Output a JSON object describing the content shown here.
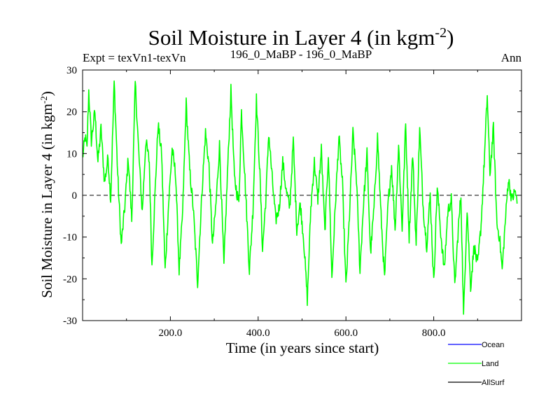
{
  "chart_data": {
    "type": "line",
    "title": "Soil Moisture in Layer 4 (in kgm",
    "title_exponent": "-2",
    "title_suffix": ")",
    "subtitle_left": "Expt = texVn1-texVn",
    "subtitle_center": "196_0_MaBP - 196_0_MaBP",
    "subtitle_right": "Ann",
    "xlabel": "Time (in years since start)",
    "ylabel": "Soil Moisture in Layer 4 (in kgm",
    "ylabel_exponent": "-2",
    "ylabel_suffix": ")",
    "xlim": [
      0,
      1000
    ],
    "ylim": [
      -30,
      30
    ],
    "xticks": [
      200,
      400,
      600,
      800
    ],
    "xtick_labels": [
      "200.0",
      "400.0",
      "600.0",
      "800.0"
    ],
    "yticks": [
      -30,
      -20,
      -10,
      0,
      10,
      20,
      30
    ],
    "ytick_labels": [
      "-30",
      "-20",
      "-10",
      "0",
      "10",
      "20",
      "30"
    ],
    "zero_line": true,
    "grid": false,
    "legend_position": "bottom-right",
    "series": [
      {
        "name": "Ocean",
        "color": "#0000ff",
        "values": []
      },
      {
        "name": "Land",
        "color": "#00ff00",
        "keypoints": [
          [
            0,
            9
          ],
          [
            6,
            14
          ],
          [
            10,
            11
          ],
          [
            14,
            25
          ],
          [
            20,
            13
          ],
          [
            28,
            20
          ],
          [
            35,
            8
          ],
          [
            42,
            16
          ],
          [
            50,
            3
          ],
          [
            58,
            9
          ],
          [
            64,
            -1
          ],
          [
            72,
            27
          ],
          [
            80,
            5
          ],
          [
            88,
            -12
          ],
          [
            96,
            -3
          ],
          [
            104,
            9
          ],
          [
            112,
            -6
          ],
          [
            120,
            27
          ],
          [
            128,
            10
          ],
          [
            136,
            -4
          ],
          [
            144,
            13
          ],
          [
            152,
            8
          ],
          [
            158,
            -17
          ],
          [
            164,
            -2
          ],
          [
            172,
            17
          ],
          [
            180,
            10
          ],
          [
            188,
            -18
          ],
          [
            196,
            -2
          ],
          [
            204,
            11
          ],
          [
            212,
            5
          ],
          [
            220,
            -18
          ],
          [
            228,
            -4
          ],
          [
            236,
            22
          ],
          [
            244,
            6
          ],
          [
            252,
            -3
          ],
          [
            262,
            -21
          ],
          [
            272,
            1
          ],
          [
            280,
            15
          ],
          [
            288,
            7
          ],
          [
            296,
            -12
          ],
          [
            304,
            -2
          ],
          [
            312,
            12
          ],
          [
            322,
            -17
          ],
          [
            330,
            5
          ],
          [
            338,
            25
          ],
          [
            346,
            4
          ],
          [
            356,
            -2
          ],
          [
            362,
            20
          ],
          [
            370,
            4
          ],
          [
            380,
            -18
          ],
          [
            388,
            -4
          ],
          [
            396,
            23
          ],
          [
            404,
            5
          ],
          [
            410,
            -13
          ],
          [
            418,
            0
          ],
          [
            424,
            15
          ],
          [
            432,
            4
          ],
          [
            440,
            -6
          ],
          [
            448,
            -3
          ],
          [
            456,
            8
          ],
          [
            464,
            1
          ],
          [
            472,
            -3
          ],
          [
            480,
            13
          ],
          [
            488,
            -8
          ],
          [
            496,
            -2
          ],
          [
            504,
            -11
          ],
          [
            512,
            -25
          ],
          [
            520,
            -3
          ],
          [
            528,
            8
          ],
          [
            536,
            -1
          ],
          [
            544,
            11
          ],
          [
            552,
            -9
          ],
          [
            560,
            10
          ],
          [
            568,
            -20
          ],
          [
            576,
            -2
          ],
          [
            584,
            14
          ],
          [
            592,
            3
          ],
          [
            600,
            -22
          ],
          [
            608,
            -5
          ],
          [
            616,
            15
          ],
          [
            624,
            4
          ],
          [
            632,
            -18
          ],
          [
            640,
            -2
          ],
          [
            648,
            10
          ],
          [
            656,
            -14
          ],
          [
            664,
            -3
          ],
          [
            672,
            14
          ],
          [
            680,
            -5
          ],
          [
            688,
            -20
          ],
          [
            696,
            -2
          ],
          [
            704,
            7
          ],
          [
            712,
            -8
          ],
          [
            720,
            12
          ],
          [
            728,
            -8
          ],
          [
            736,
            17
          ],
          [
            744,
            -10
          ],
          [
            752,
            10
          ],
          [
            760,
            -12
          ],
          [
            768,
            16
          ],
          [
            776,
            -3
          ],
          [
            784,
            -12
          ],
          [
            792,
            0
          ],
          [
            800,
            -21
          ],
          [
            808,
            2
          ],
          [
            816,
            -9
          ],
          [
            824,
            -18
          ],
          [
            832,
            -4
          ],
          [
            840,
            -1
          ],
          [
            848,
            -22
          ],
          [
            856,
            -8
          ],
          [
            862,
            0
          ],
          [
            868,
            -29
          ],
          [
            876,
            -3
          ],
          [
            884,
            -22
          ],
          [
            892,
            -12
          ],
          [
            900,
            -17
          ],
          [
            908,
            -7
          ],
          [
            916,
            10
          ],
          [
            922,
            24
          ],
          [
            928,
            5
          ],
          [
            936,
            16
          ],
          [
            944,
            -7
          ],
          [
            950,
            -10
          ],
          [
            956,
            -18
          ],
          [
            962,
            -8
          ],
          [
            970,
            4
          ],
          [
            978,
            -1
          ],
          [
            986,
            1
          ],
          [
            990,
            -2
          ]
        ]
      },
      {
        "name": "AllSurf",
        "color": "#000000",
        "values": []
      }
    ]
  }
}
